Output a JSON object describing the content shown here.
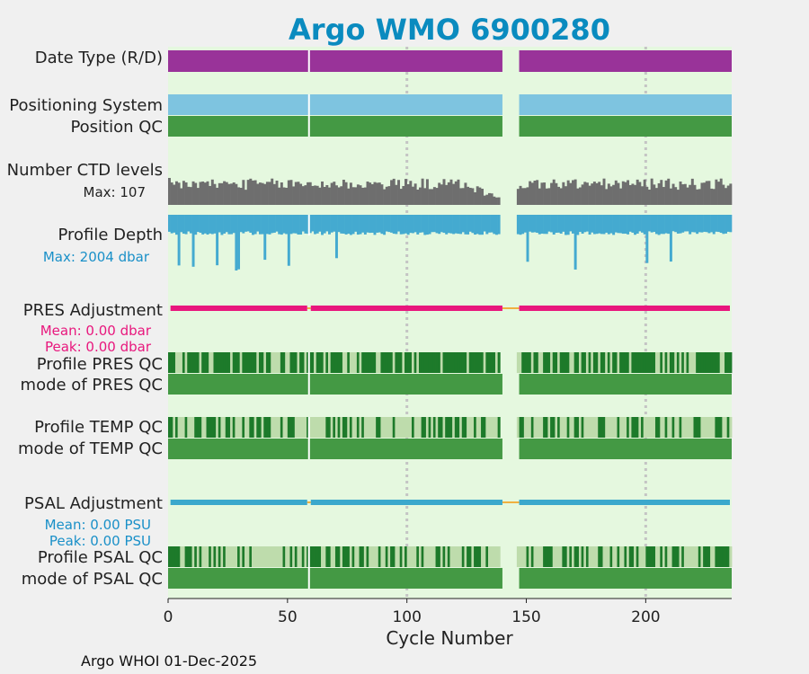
{
  "chart_data": {
    "type": "timeline",
    "title": "Argo WMO 6900280",
    "xlabel": "Cycle Number",
    "xlim": [
      0,
      236
    ],
    "xticks": [
      0,
      50,
      100,
      150,
      200
    ],
    "vlines": [
      100,
      200
    ],
    "gap": [
      140,
      147
    ],
    "white_line_at": 59,
    "footer": "Argo WHOI 01-Dec-2025",
    "rows": {
      "date_type": {
        "label": "Date Type (R/D)"
      },
      "positioning": {
        "label": "Positioning System",
        "qc_label": "Position QC"
      },
      "ctd_levels": {
        "label": "Number CTD levels",
        "max_label": "Max: 107",
        "max": 107
      },
      "profile_depth": {
        "label": "Profile Depth",
        "max_label": "Max: 2004 dbar",
        "max": 2004
      },
      "pres_adjustment": {
        "label": "PRES Adjustment",
        "mean_label": "Mean: 0.00 dbar",
        "peak_label": "Peak: 0.00 dbar"
      },
      "pres_qc": {
        "label": "Profile PRES QC",
        "mode_label": "mode of PRES QC"
      },
      "temp_qc": {
        "label": "Profile TEMP QC",
        "mode_label": "mode of TEMP QC"
      },
      "psal_adjustment": {
        "label": "PSAL Adjustment",
        "mean_label": "Mean: 0.00 PSU",
        "peak_label": "Peak: 0.00 PSU"
      },
      "psal_qc": {
        "label": "Profile PSAL QC",
        "mode_label": "mode of PSAL QC"
      }
    },
    "colors": {
      "title": "#0a8bbf",
      "plot_bg": "#e5f8df",
      "date_type": "#993399",
      "positioning": "#7ec4e0",
      "qc_green": "#449944",
      "dark_green": "#1d7a2a",
      "light_green": "#bedcac",
      "ctd": "#6e6e6e",
      "depth": "#44aad0",
      "pres_adj": "#e8177d",
      "psal_adj": "#3ba8cc",
      "adj_gap": "#f0b040",
      "vline": "#c4c4c4"
    }
  }
}
